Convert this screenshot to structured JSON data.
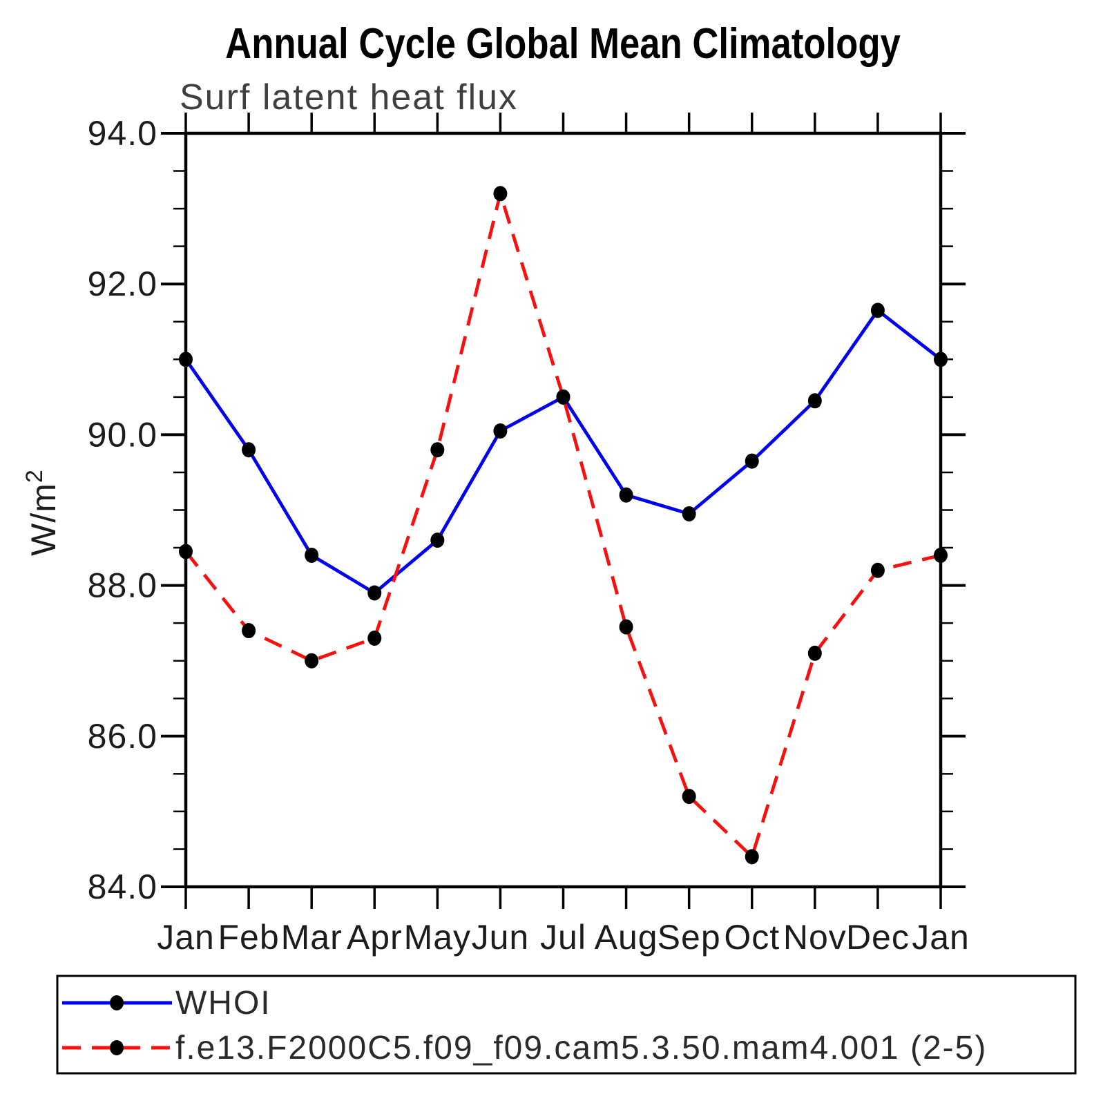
{
  "title": "Annual Cycle Global Mean Climatology",
  "subtitle": "Surf latent heat flux",
  "y_axis": {
    "label_base": "W/m",
    "label_exponent": "2",
    "tick_labels": [
      "84.0",
      "86.0",
      "88.0",
      "90.0",
      "92.0",
      "94.0"
    ]
  },
  "x_axis": {
    "tick_labels": [
      "Jan",
      "Feb",
      "Mar",
      "Apr",
      "May",
      "Jun",
      "Jul",
      "Aug",
      "Sep",
      "Oct",
      "Nov",
      "Dec",
      "Jan"
    ]
  },
  "legend": {
    "entries": [
      "WHOI",
      "f.e13.F2000C5.f09_f09.cam5.3.50.mam4.001 (2-5)"
    ]
  },
  "colors": {
    "whoi_line": "#0000ee",
    "model_line": "#f8100e",
    "marker": "#000000",
    "axis": "#000000"
  },
  "chart_data": {
    "type": "line",
    "categories": [
      "Jan",
      "Feb",
      "Mar",
      "Apr",
      "May",
      "Jun",
      "Jul",
      "Aug",
      "Sep",
      "Oct",
      "Nov",
      "Dec",
      "Jan"
    ],
    "series": [
      {
        "name": "WHOI",
        "style": "solid",
        "color": "#0000ee",
        "values": [
          91.0,
          89.8,
          88.4,
          87.9,
          88.6,
          90.05,
          90.5,
          89.2,
          88.95,
          89.65,
          90.45,
          91.65,
          91.0
        ]
      },
      {
        "name": "f.e13.F2000C5.f09_f09.cam5.3.50.mam4.001 (2-5)",
        "style": "dashed",
        "color": "#f8100e",
        "values": [
          88.45,
          87.4,
          87.0,
          87.3,
          89.8,
          93.2,
          90.5,
          87.45,
          85.2,
          84.4,
          87.1,
          88.2,
          88.4
        ]
      }
    ],
    "title": "Annual Cycle Global Mean Climatology",
    "subtitle": "Surf latent heat flux",
    "xlabel": "",
    "ylabel": "W/m2",
    "ylim": [
      84.0,
      94.0
    ],
    "ytick_major_step": 2.0,
    "ytick_minor_step": 0.5,
    "grid": false,
    "legend_position": "bottom",
    "marker": "filled-circle"
  }
}
